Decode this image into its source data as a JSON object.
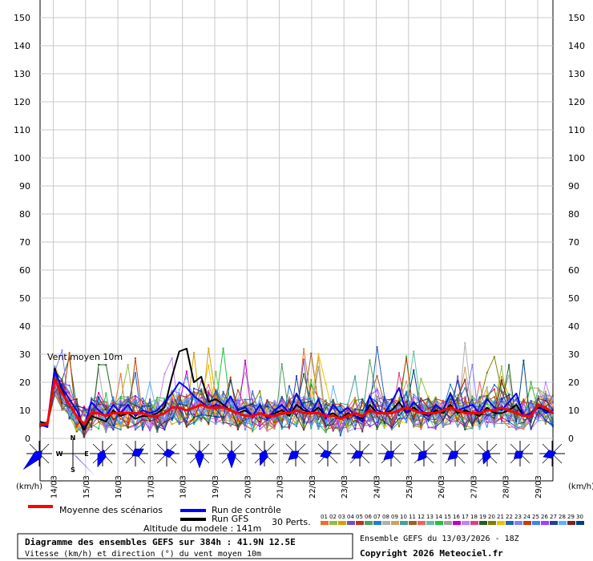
{
  "chart_data": {
    "type": "line",
    "y_ticks": [
      0,
      10,
      20,
      30,
      40,
      50,
      60,
      70,
      80,
      90,
      100,
      110,
      120,
      130,
      140,
      150
    ],
    "ylim": [
      0,
      155
    ],
    "y_unit": "(km/h)",
    "date_labels": [
      "14/03",
      "15/03",
      "16/03",
      "17/03",
      "18/03",
      "19/03",
      "20/03",
      "21/03",
      "22/03",
      "23/03",
      "24/03",
      "25/03",
      "26/03",
      "27/03",
      "28/03",
      "29/03"
    ],
    "annotation": "Vent moyen 10m",
    "compass": {
      "n": "N",
      "s": "S",
      "e": "E",
      "w": "W"
    },
    "series": [
      {
        "name": "Moyenne des scénarios",
        "color": "#ff0000",
        "values": [
          5,
          5,
          21,
          16,
          12,
          8,
          5,
          9,
          9,
          8,
          9,
          9,
          9,
          9,
          9,
          8,
          8,
          9,
          11,
          11,
          10,
          11,
          12,
          11,
          11,
          11,
          10,
          9,
          8,
          8,
          9,
          8,
          8,
          9,
          9,
          10,
          9,
          9,
          9,
          8,
          8,
          7,
          8,
          9,
          8,
          10,
          9,
          9,
          9,
          10,
          11,
          10,
          9,
          9,
          9,
          10,
          11,
          10,
          9,
          9,
          9,
          10,
          10,
          11,
          10,
          9,
          8,
          8,
          12,
          11,
          9
        ]
      },
      {
        "name": "Run de contrôle",
        "color": "#0000ff",
        "values": [
          5,
          4,
          24,
          18,
          14,
          10,
          4,
          13,
          10,
          8,
          12,
          9,
          12,
          8,
          10,
          9,
          10,
          13,
          16,
          20,
          18,
          15,
          13,
          11,
          12,
          11,
          15,
          10,
          11,
          8,
          12,
          7,
          10,
          12,
          9,
          16,
          11,
          9,
          14,
          7,
          12,
          9,
          11,
          8,
          6,
          15,
          10,
          9,
          13,
          18,
          9,
          13,
          10,
          8,
          12,
          10,
          16,
          10,
          11,
          12,
          9,
          14,
          11,
          10,
          13,
          16,
          8,
          9,
          12,
          9,
          10
        ]
      },
      {
        "name": "Run GFS",
        "color": "#000000",
        "values": [
          6,
          5,
          25,
          17,
          12,
          8,
          3,
          8,
          7,
          6,
          10,
          8,
          9,
          7,
          8,
          8,
          9,
          11,
          22,
          31,
          32,
          20,
          22,
          13,
          14,
          12,
          10,
          9,
          10,
          8,
          9,
          8,
          9,
          10,
          8,
          12,
          10,
          9,
          11,
          8,
          9,
          7,
          9,
          8,
          7,
          12,
          9,
          9,
          10,
          13,
          9,
          11,
          9,
          8,
          10,
          9,
          12,
          9,
          10,
          9,
          8,
          11,
          9,
          9,
          10,
          12,
          8,
          9,
          11,
          10,
          9
        ]
      }
    ],
    "perturbations": {
      "label": "30 Perts.",
      "ids": [
        "01",
        "02",
        "03",
        "04",
        "05",
        "06",
        "07",
        "08",
        "09",
        "10",
        "11",
        "12",
        "13",
        "14",
        "15",
        "16",
        "17",
        "18",
        "19",
        "20",
        "21",
        "22",
        "23",
        "24",
        "25",
        "26",
        "27",
        "28",
        "29",
        "30"
      ],
      "colors": [
        "#e8702a",
        "#8fbf40",
        "#d4a000",
        "#7050c0",
        "#c03020",
        "#50a060",
        "#2080d0",
        "#b0b0b0",
        "#d0a060",
        "#40a0a0",
        "#a06020",
        "#f06060",
        "#60c0a0",
        "#20c040",
        "#a0a0a0",
        "#c000c0",
        "#c080ff",
        "#e04080",
        "#206020",
        "#808000",
        "#f0c000",
        "#2060c0",
        "#8080ff",
        "#c04000",
        "#4080ff",
        "#a040ff",
        "#2040a0",
        "#60b0ff",
        "#802020",
        "#004080"
      ]
    }
  },
  "legend": {
    "mean": "Moyenne des scénarios",
    "control": "Run de contrôle",
    "gfs": "Run GFS",
    "altitude": "Altitude du modele : 141m",
    "perts": "30 Perts."
  },
  "footer": {
    "title": "Diagramme des ensembles GEFS sur 384h : 41.9N 12.5E",
    "subtitle": "Vitesse (km/h) et direction (°) du vent moyen 10m",
    "run": "Ensemble GEFS du 13/03/2026 - 18Z",
    "copyright": "Copyright 2026 Meteociel.fr"
  }
}
